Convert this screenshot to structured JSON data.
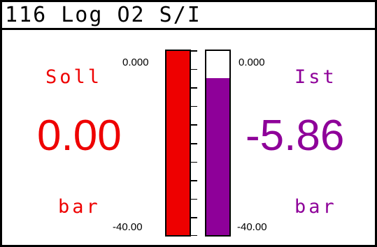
{
  "title": "116  Log  O2  S/I",
  "left": {
    "label": "Soll",
    "value": "0.00",
    "unit": "bar",
    "color": "#ee0000",
    "fill_fraction": 1.0
  },
  "right": {
    "label": "Ist",
    "value": "-5.86",
    "unit": "bar",
    "color": "#8e0099",
    "fill_fraction": 0.8535
  },
  "scale": {
    "top_label": "0.000",
    "bottom_label": "-40.00"
  }
}
